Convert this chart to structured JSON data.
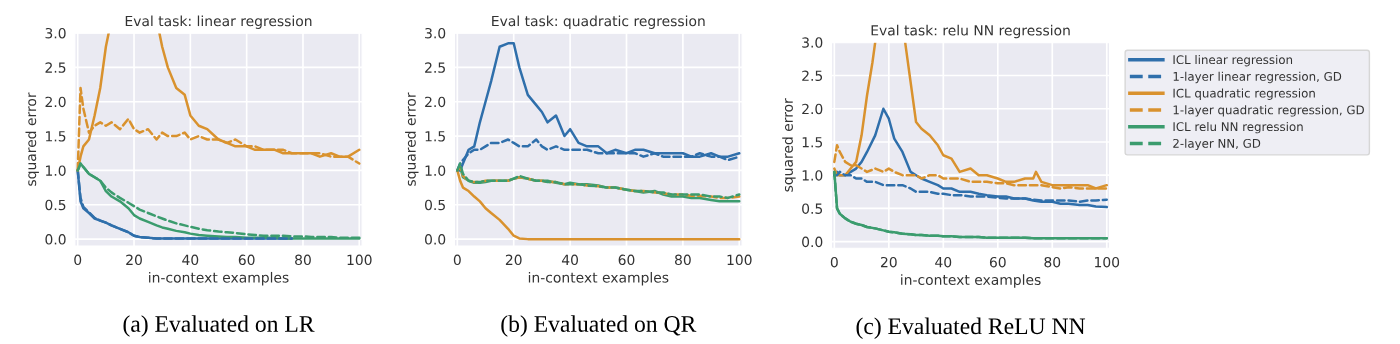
{
  "chart_data": [
    {
      "type": "line",
      "title": "Eval task: linear regression",
      "xlabel": "in-context examples",
      "ylabel": "squared error",
      "annotations": [
        "(a) Evaluated on LR"
      ],
      "grid": true,
      "xlim": [
        -1,
        101
      ],
      "ylim": [
        -0.1,
        3.0
      ],
      "xticks": [
        0,
        20,
        40,
        60,
        80,
        100
      ],
      "yticks": [
        {
          "value": 0,
          "label": "0.0"
        },
        {
          "value": 0.5,
          "label": "0.5"
        },
        {
          "value": 1,
          "label": "1.0"
        },
        {
          "value": 1.5,
          "label": "1.5"
        },
        {
          "value": 2,
          "label": "2.0"
        },
        {
          "value": 2.5,
          "label": "2.5"
        },
        {
          "value": 3,
          "label": "3.0"
        }
      ],
      "x": [
        0,
        1,
        2,
        4,
        6,
        8,
        10,
        12,
        15,
        18,
        20,
        22,
        25,
        28,
        30,
        32,
        35,
        38,
        40,
        43,
        46,
        50,
        53,
        56,
        60,
        63,
        66,
        70,
        73,
        76,
        80,
        83,
        86,
        90,
        93,
        96,
        100
      ],
      "series": [
        {
          "color": "#2f6fab",
          "line_style": "solid",
          "values": [
            1.0,
            0.55,
            0.45,
            0.38,
            0.3,
            0.27,
            0.24,
            0.2,
            0.15,
            0.1,
            0.05,
            0.03,
            0.02,
            0.01,
            0.01,
            0.01,
            0.01,
            0.01,
            0.01,
            0.01,
            0.01,
            0.01,
            0.01,
            0.01,
            0.01,
            0.01,
            0.01,
            0.01,
            0.01,
            0.01,
            null,
            null,
            null,
            null,
            null,
            null,
            null
          ]
        },
        {
          "color": "#2f6fab",
          "line_style": "dashed",
          "values": [
            1.0,
            0.6,
            0.47,
            0.39,
            0.31,
            0.27,
            0.24,
            0.2,
            0.15,
            0.1,
            0.05,
            0.03,
            0.02,
            0.01,
            0.01,
            0.01,
            0.01,
            0.01,
            0.01,
            0.01,
            0.01,
            0.01,
            0.01,
            0.01,
            0.01,
            0.01,
            0.01,
            0.01,
            0.01,
            0.01,
            null,
            null,
            null,
            null,
            null,
            null,
            null
          ]
        },
        {
          "color": "#d9922e",
          "line_style": "solid",
          "x": [
            0,
            1,
            2,
            4,
            6,
            8,
            10,
            11,
            20,
            29,
            30,
            32,
            35,
            38,
            40,
            43,
            46,
            50,
            53,
            56,
            60,
            63,
            66,
            70,
            73,
            76,
            80,
            83,
            86,
            90,
            93,
            96,
            100
          ],
          "values": [
            1.0,
            1.2,
            1.35,
            1.45,
            1.8,
            2.2,
            2.8,
            3.0,
            null,
            3.0,
            2.8,
            2.5,
            2.2,
            2.1,
            1.8,
            1.65,
            1.6,
            1.45,
            1.4,
            1.35,
            1.35,
            1.3,
            1.3,
            1.3,
            1.25,
            1.25,
            1.25,
            1.25,
            1.2,
            1.25,
            1.2,
            1.2,
            1.3
          ]
        },
        {
          "color": "#d9922e",
          "line_style": "dashed",
          "values": [
            1.0,
            2.2,
            1.9,
            1.55,
            1.65,
            1.7,
            1.65,
            1.7,
            1.6,
            1.75,
            1.6,
            1.55,
            1.6,
            1.45,
            1.55,
            1.5,
            1.5,
            1.55,
            1.45,
            1.5,
            1.45,
            1.45,
            1.4,
            1.45,
            1.35,
            1.35,
            1.3,
            1.3,
            1.3,
            1.25,
            1.25,
            1.25,
            1.25,
            1.2,
            1.2,
            1.2,
            1.1
          ]
        },
        {
          "color": "#3b9c6e",
          "line_style": "solid",
          "values": [
            1.0,
            1.1,
            1.05,
            0.95,
            0.9,
            0.85,
            0.7,
            0.62,
            0.55,
            0.45,
            0.35,
            0.3,
            0.25,
            0.2,
            0.17,
            0.15,
            0.12,
            0.1,
            0.08,
            0.06,
            0.05,
            0.04,
            0.03,
            0.03,
            0.02,
            0.02,
            0.02,
            0.02,
            0.01,
            0.01,
            0.01,
            0.01,
            0.01,
            0.01,
            0.01,
            0.01,
            0.01
          ]
        },
        {
          "color": "#3b9c6e",
          "line_style": "dashed",
          "values": [
            1.0,
            1.1,
            1.05,
            0.95,
            0.9,
            0.85,
            0.75,
            0.68,
            0.6,
            0.53,
            0.48,
            0.43,
            0.38,
            0.33,
            0.3,
            0.27,
            0.23,
            0.2,
            0.18,
            0.15,
            0.13,
            0.11,
            0.1,
            0.09,
            0.07,
            0.06,
            0.05,
            0.05,
            0.05,
            0.04,
            0.04,
            0.03,
            0.03,
            0.03,
            0.02,
            0.02,
            0.02
          ]
        }
      ]
    },
    {
      "type": "line",
      "title": "Eval task: quadratic regression",
      "xlabel": "in-context examples",
      "ylabel": "squared error",
      "annotations": [
        "(b) Evaluated on QR"
      ],
      "grid": true,
      "xlim": [
        -1,
        101
      ],
      "ylim": [
        -0.1,
        3.0
      ],
      "xticks": [
        0,
        20,
        40,
        60,
        80,
        100
      ],
      "yticks": [
        {
          "value": 0,
          "label": "0.0"
        },
        {
          "value": 0.5,
          "label": "0.5"
        },
        {
          "value": 1,
          "label": "1.0"
        },
        {
          "value": 1.5,
          "label": "1.5"
        },
        {
          "value": 2,
          "label": "2.0"
        },
        {
          "value": 2.5,
          "label": "2.5"
        },
        {
          "value": 3,
          "label": "3.0"
        }
      ],
      "x": [
        0,
        1,
        2,
        4,
        6,
        8,
        10,
        12,
        15,
        18,
        20,
        22,
        25,
        28,
        30,
        32,
        35,
        38,
        40,
        43,
        46,
        50,
        53,
        56,
        60,
        63,
        66,
        70,
        73,
        76,
        80,
        83,
        86,
        90,
        93,
        96,
        100
      ],
      "series": [
        {
          "color": "#2f6fab",
          "line_style": "solid",
          "values": [
            1.0,
            1.0,
            1.1,
            1.3,
            1.35,
            1.7,
            2.0,
            2.3,
            2.8,
            2.85,
            2.85,
            2.5,
            2.1,
            1.95,
            1.85,
            1.7,
            1.8,
            1.5,
            1.6,
            1.4,
            1.35,
            1.35,
            1.25,
            1.3,
            1.25,
            1.3,
            1.3,
            1.25,
            1.25,
            1.25,
            1.25,
            1.2,
            1.2,
            1.25,
            1.2,
            1.2,
            1.25
          ]
        },
        {
          "color": "#2f6fab",
          "line_style": "dashed",
          "values": [
            1.0,
            1.1,
            1.15,
            1.25,
            1.3,
            1.3,
            1.35,
            1.4,
            1.4,
            1.45,
            1.4,
            1.35,
            1.35,
            1.45,
            1.35,
            1.3,
            1.35,
            1.3,
            1.3,
            1.3,
            1.3,
            1.25,
            1.25,
            1.25,
            1.25,
            1.25,
            1.2,
            1.25,
            1.2,
            1.2,
            1.2,
            1.2,
            1.25,
            1.2,
            1.2,
            1.15,
            1.2
          ]
        },
        {
          "color": "#d9922e",
          "line_style": "solid",
          "values": [
            1.0,
            0.85,
            0.75,
            0.7,
            0.62,
            0.55,
            0.45,
            0.38,
            0.28,
            0.15,
            0.05,
            0.01,
            0,
            0,
            0,
            0,
            0,
            0,
            0,
            0,
            0,
            0,
            0,
            0,
            0,
            0,
            0,
            0,
            0,
            0,
            0,
            0,
            0,
            0,
            0,
            0,
            0
          ]
        },
        {
          "color": "#d9922e",
          "line_style": "dashed",
          "values": [
            1.0,
            1.05,
            0.92,
            0.85,
            0.83,
            0.83,
            0.85,
            0.85,
            0.85,
            0.85,
            0.88,
            0.9,
            0.88,
            0.85,
            0.85,
            0.83,
            0.83,
            0.8,
            0.8,
            0.8,
            0.78,
            0.77,
            0.75,
            0.75,
            0.72,
            0.7,
            0.7,
            0.68,
            0.67,
            0.65,
            0.65,
            0.63,
            0.63,
            0.62,
            0.6,
            0.6,
            0.62
          ]
        },
        {
          "color": "#3b9c6e",
          "line_style": "solid",
          "values": [
            1.0,
            1.05,
            0.9,
            0.85,
            0.82,
            0.82,
            0.83,
            0.85,
            0.85,
            0.85,
            0.88,
            0.9,
            0.88,
            0.85,
            0.85,
            0.85,
            0.82,
            0.8,
            0.82,
            0.8,
            0.8,
            0.78,
            0.75,
            0.75,
            0.72,
            0.7,
            0.68,
            0.7,
            0.65,
            0.62,
            0.62,
            0.6,
            0.6,
            0.57,
            0.55,
            0.55,
            0.55
          ]
        },
        {
          "color": "#3b9c6e",
          "line_style": "dashed",
          "values": [
            1.0,
            1.1,
            0.95,
            0.85,
            0.83,
            0.83,
            0.85,
            0.85,
            0.85,
            0.85,
            0.88,
            0.92,
            0.88,
            0.85,
            0.85,
            0.83,
            0.83,
            0.8,
            0.8,
            0.8,
            0.78,
            0.77,
            0.75,
            0.75,
            0.72,
            0.7,
            0.7,
            0.68,
            0.68,
            0.65,
            0.65,
            0.65,
            0.65,
            0.62,
            0.62,
            0.6,
            0.65
          ]
        }
      ]
    },
    {
      "type": "line",
      "title": "Eval task: relu NN regression",
      "xlabel": "in-context examples",
      "ylabel": "squared error",
      "annotations": [
        "(c) Evaluated ReLU NN"
      ],
      "grid": true,
      "legend": "right",
      "xlim": [
        -1,
        101
      ],
      "ylim": [
        -0.1,
        3.0
      ],
      "xticks": [
        0,
        20,
        40,
        60,
        80,
        100
      ],
      "yticks": [
        {
          "value": 0,
          "label": "0.0"
        },
        {
          "value": 0.5,
          "label": "0.5"
        },
        {
          "value": 1,
          "label": "1.0"
        },
        {
          "value": 1.5,
          "label": "1.5"
        },
        {
          "value": 2,
          "label": "2.0"
        },
        {
          "value": 2.5,
          "label": "2.5"
        },
        {
          "value": 3,
          "label": "3.0"
        }
      ],
      "x": [
        0,
        1,
        2,
        4,
        6,
        8,
        10,
        12,
        15,
        18,
        20,
        22,
        25,
        28,
        30,
        32,
        35,
        38,
        40,
        43,
        46,
        50,
        53,
        56,
        60,
        63,
        66,
        70,
        73,
        76,
        80,
        83,
        86,
        90,
        93,
        96,
        100
      ],
      "series": [
        {
          "name": "ICL linear regression",
          "color": "#2f6fab",
          "line_style": "solid",
          "values": [
            1.0,
            1.05,
            1.0,
            1.0,
            1.05,
            1.1,
            1.2,
            1.35,
            1.6,
            2.0,
            1.85,
            1.55,
            1.35,
            1.05,
            1.0,
            0.95,
            0.9,
            0.85,
            0.8,
            0.8,
            0.75,
            0.75,
            0.72,
            0.7,
            0.68,
            0.68,
            0.65,
            0.65,
            0.62,
            0.6,
            0.6,
            0.57,
            0.57,
            0.55,
            0.55,
            0.53,
            0.52
          ]
        },
        {
          "name": "1-layer linear regression, GD",
          "color": "#2f6fab",
          "line_style": "dashed",
          "values": [
            1.0,
            1.0,
            1.05,
            1.0,
            1.0,
            0.95,
            0.95,
            0.9,
            0.9,
            0.85,
            0.85,
            0.85,
            0.85,
            0.8,
            0.75,
            0.75,
            0.75,
            0.72,
            0.72,
            0.7,
            0.7,
            0.68,
            0.68,
            0.68,
            0.66,
            0.65,
            0.65,
            0.65,
            0.63,
            0.62,
            0.62,
            0.62,
            0.62,
            0.6,
            0.62,
            0.62,
            0.63
          ]
        },
        {
          "name": "ICL quadratic regression",
          "color": "#d9922e",
          "line_style": "solid",
          "x": [
            0,
            1,
            2,
            4,
            6,
            8,
            10,
            12,
            14,
            15,
            20,
            26,
            28,
            30,
            32,
            35,
            38,
            40,
            43,
            46,
            50,
            53,
            56,
            60,
            63,
            66,
            70,
            73,
            74,
            76,
            80,
            83,
            86,
            90,
            93,
            96,
            100
          ],
          "values": [
            1.1,
            1.0,
            1.0,
            1.0,
            1.1,
            1.2,
            1.6,
            2.2,
            2.7,
            3.0,
            null,
            3.0,
            2.4,
            1.8,
            1.7,
            1.6,
            1.45,
            1.3,
            1.25,
            1.05,
            1.1,
            1.0,
            1.0,
            0.95,
            0.9,
            0.9,
            0.95,
            0.95,
            1.05,
            0.9,
            0.85,
            0.85,
            0.85,
            0.85,
            0.85,
            0.8,
            0.85
          ]
        },
        {
          "name": "1-layer quadratic regression, GD",
          "color": "#d9922e",
          "line_style": "dashed",
          "values": [
            1.2,
            1.45,
            1.35,
            1.2,
            1.15,
            1.15,
            1.1,
            1.05,
            1.1,
            1.05,
            1.1,
            1.05,
            1.0,
            1.0,
            1.0,
            0.95,
            1.0,
            1.0,
            0.95,
            0.95,
            0.95,
            0.9,
            0.9,
            0.9,
            0.88,
            0.88,
            0.85,
            0.85,
            0.85,
            0.85,
            0.82,
            0.8,
            0.82,
            0.8,
            0.8,
            0.8,
            0.8
          ]
        },
        {
          "name": "ICL relu NN regression",
          "color": "#3b9c6e",
          "line_style": "solid",
          "values": [
            1.05,
            0.5,
            0.42,
            0.35,
            0.3,
            0.27,
            0.25,
            0.22,
            0.2,
            0.17,
            0.15,
            0.14,
            0.12,
            0.11,
            0.1,
            0.1,
            0.09,
            0.09,
            0.08,
            0.08,
            0.07,
            0.07,
            0.07,
            0.06,
            0.06,
            0.06,
            0.06,
            0.06,
            0.05,
            0.05,
            0.05,
            0.05,
            0.05,
            0.05,
            0.05,
            0.05,
            0.05
          ]
        },
        {
          "name": "2-layer NN, GD",
          "color": "#3b9c6e",
          "line_style": "dashed",
          "values": [
            1.05,
            0.5,
            0.42,
            0.35,
            0.3,
            0.27,
            0.25,
            0.22,
            0.2,
            0.17,
            0.15,
            0.14,
            0.12,
            0.11,
            0.1,
            0.1,
            0.09,
            0.09,
            0.08,
            0.08,
            0.07,
            0.07,
            0.07,
            0.06,
            0.06,
            0.06,
            0.06,
            0.06,
            0.05,
            0.05,
            0.05,
            0.05,
            0.05,
            0.05,
            0.05,
            0.05,
            0.05
          ]
        }
      ]
    }
  ]
}
